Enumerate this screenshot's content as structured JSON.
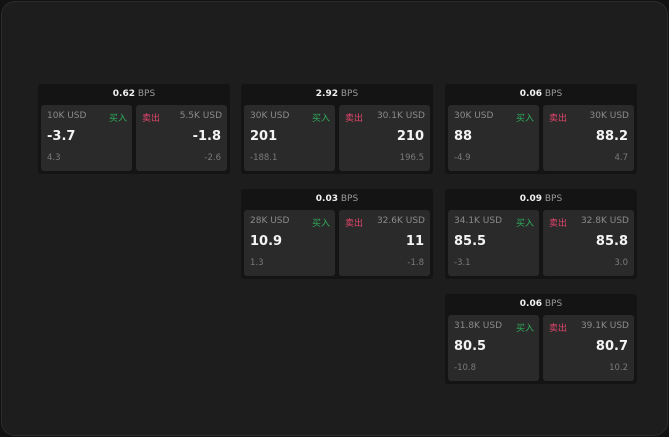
{
  "colors": {
    "buy": "#2fae5c",
    "sell": "#e0456b",
    "background": "#1d1d1d"
  },
  "labels": {
    "buy": "买入",
    "sell": "卖出",
    "unit": "BPS"
  },
  "cards": [
    {
      "spread": "0.62",
      "bid": {
        "size": "10K USD",
        "price": "-3.7",
        "change": "4.3"
      },
      "ask": {
        "size": "5.5K USD",
        "price": "-1.8",
        "change": "-2.6"
      }
    },
    {
      "spread": "2.92",
      "bid": {
        "size": "30K USD",
        "price": "201",
        "change": "-188.1"
      },
      "ask": {
        "size": "30.1K USD",
        "price": "210",
        "change": "196.5"
      }
    },
    {
      "spread": "0.06",
      "bid": {
        "size": "30K USD",
        "price": "88",
        "change": "-4.9"
      },
      "ask": {
        "size": "30K USD",
        "price": "88.2",
        "change": "4.7"
      }
    },
    {
      "spread": "0.03",
      "bid": {
        "size": "28K USD",
        "price": "10.9",
        "change": "1.3"
      },
      "ask": {
        "size": "32.6K USD",
        "price": "11",
        "change": "-1.8"
      }
    },
    {
      "spread": "0.09",
      "bid": {
        "size": "34.1K USD",
        "price": "85.5",
        "change": "-3.1"
      },
      "ask": {
        "size": "32.8K USD",
        "price": "85.8",
        "change": "3.0"
      }
    },
    {
      "spread": "0.06",
      "bid": {
        "size": "31.8K USD",
        "price": "80.5",
        "change": "-10.8"
      },
      "ask": {
        "size": "39.1K USD",
        "price": "80.7",
        "change": "10.2"
      }
    }
  ]
}
